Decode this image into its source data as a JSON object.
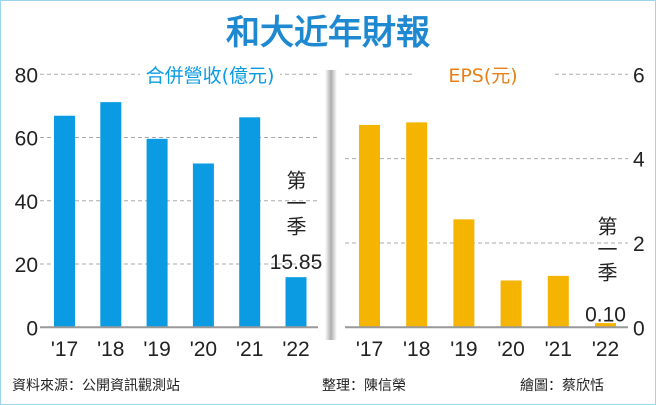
{
  "title": "和大近年財報",
  "colors": {
    "revenue": "#0a9be3",
    "eps": "#f5b400",
    "title": "#1e88d0",
    "eps_title": "#e8801a"
  },
  "chart_data": [
    {
      "type": "bar",
      "title": "合併營收(億元)",
      "categories": [
        "'17",
        "'18",
        "'19",
        "'20",
        "'21",
        "'22"
      ],
      "values": [
        66.9,
        71.2,
        59.6,
        51.8,
        66.4,
        15.85
      ],
      "ylim": [
        0,
        80
      ],
      "yticks": [
        0,
        20,
        40,
        60,
        80
      ],
      "yaxis_position": "left",
      "grid": true,
      "annotation": {
        "category": "'22",
        "label": "第一季",
        "value_label": "15.85"
      }
    },
    {
      "type": "bar",
      "title": "EPS(元)",
      "categories": [
        "'17",
        "'18",
        "'19",
        "'20",
        "'21",
        "'22"
      ],
      "values": [
        4.8,
        4.86,
        2.56,
        1.11,
        1.22,
        0.1
      ],
      "ylim": [
        0,
        6
      ],
      "yticks": [
        0,
        2,
        4,
        6
      ],
      "yaxis_position": "right",
      "grid": true,
      "annotation": {
        "category": "'22",
        "label": "第一季",
        "value_label": "0.10"
      }
    }
  ],
  "footer": {
    "source": "資料來源：公開資訊觀測站",
    "editor": "整理：陳信榮",
    "artist": "繪圖：蔡欣恬"
  }
}
